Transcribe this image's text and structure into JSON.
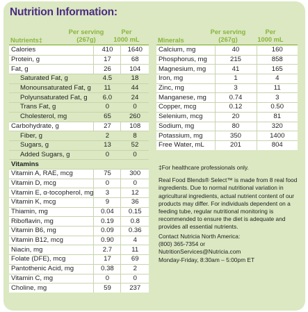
{
  "title": "Nutrition Information:",
  "headers": {
    "nutrients": "Nutrients‡",
    "per_serving": "Per serving",
    "per_serving_sub": "(267g)",
    "per_volume": "Per",
    "per_volume_sub": "1000 mL",
    "minerals": "Minerals"
  },
  "nutrients": [
    {
      "name": "Calories",
      "serving": "410",
      "volume": "1640",
      "white": true
    },
    {
      "name": "Protein, g",
      "serving": "17",
      "volume": "68",
      "white": true
    },
    {
      "name": "Fat, g",
      "serving": "26",
      "volume": "104",
      "white": true
    },
    {
      "name": "Saturated Fat, g",
      "serving": "4.5",
      "volume": "18",
      "white": false,
      "sub": true
    },
    {
      "name": "Monounsaturated Fat, g",
      "serving": "11",
      "volume": "44",
      "white": false,
      "sub": true
    },
    {
      "name": "Polyunsaturated Fat, g",
      "serving": "6.0",
      "volume": "24",
      "white": false,
      "sub": true
    },
    {
      "name": "Trans Fat, g",
      "serving": "0",
      "volume": "0",
      "white": false,
      "sub": true
    },
    {
      "name": "Cholesterol, mg",
      "serving": "65",
      "volume": "260",
      "white": false,
      "sub": true
    },
    {
      "name": "Carbohydrate, g",
      "serving": "27",
      "volume": "108",
      "white": true
    },
    {
      "name": "Fiber, g",
      "serving": "2",
      "volume": "8",
      "white": false,
      "sub": true
    },
    {
      "name": "Sugars, g",
      "serving": "13",
      "volume": "52",
      "white": false,
      "sub": true
    },
    {
      "name": "Added Sugars, g",
      "serving": "0",
      "volume": "0",
      "white": false,
      "sub": true
    }
  ],
  "vitamins_heading": "Vitamins",
  "vitamins": [
    {
      "name": "Vitamin A, RAE, mcg",
      "serving": "75",
      "volume": "300"
    },
    {
      "name": "Vitamin D, mcg",
      "serving": "0",
      "volume": "0"
    },
    {
      "name": "Vitamin E, α-tocopherol, mg",
      "serving": "3",
      "volume": "12"
    },
    {
      "name": "Vitamin K, mcg",
      "serving": "9",
      "volume": "36"
    },
    {
      "name": "Thiamin, mg",
      "serving": "0.04",
      "volume": "0.15"
    },
    {
      "name": "Riboflavin, mg",
      "serving": "0.19",
      "volume": "0.8"
    },
    {
      "name": "Vitamin B6, mg",
      "serving": "0.09",
      "volume": "0.36"
    },
    {
      "name": "Vitamin B12, mcg",
      "serving": "0.90",
      "volume": "4"
    },
    {
      "name": "Niacin, mg",
      "serving": "2.7",
      "volume": "11"
    },
    {
      "name": "Folate (DFE), mcg",
      "serving": "17",
      "volume": "69"
    },
    {
      "name": "Pantothenic Acid, mg",
      "serving": "0.38",
      "volume": "2"
    },
    {
      "name": "Vitamin C, mg",
      "serving": "0",
      "volume": "0"
    },
    {
      "name": "Choline, mg",
      "serving": "59",
      "volume": "237"
    }
  ],
  "minerals": [
    {
      "name": "Calcium, mg",
      "serving": "40",
      "volume": "160"
    },
    {
      "name": "Phosphorus, mg",
      "serving": "215",
      "volume": "858"
    },
    {
      "name": "Magnesium, mg",
      "serving": "41",
      "volume": "165"
    },
    {
      "name": "Iron, mg",
      "serving": "1",
      "volume": "4"
    },
    {
      "name": "Zinc, mg",
      "serving": "3",
      "volume": "11"
    },
    {
      "name": "Manganese, mg",
      "serving": "0.74",
      "volume": "3"
    },
    {
      "name": "Copper, mcg",
      "serving": "0.12",
      "volume": "0.50"
    },
    {
      "name": "Selenium, mcg",
      "serving": "20",
      "volume": "81"
    },
    {
      "name": "Sodium, mg",
      "serving": "80",
      "volume": "320"
    },
    {
      "name": "Potassium, mg",
      "serving": "350",
      "volume": "1400"
    },
    {
      "name": "Free Water, mL",
      "serving": "201",
      "volume": "804"
    }
  ],
  "footnote": "‡For healthcare professionals only.",
  "description": "Real Food Blends® Select™ is made from 8 real food ingredients. Due to normal nutritional variation in agricultural ingredients, actual nutrient content of our products may differ. For individuals dependent on a feeding tube, regular nutritional monitoring is recommended to ensure the diet is adequate and provides all essential nutrients.",
  "contact": {
    "heading": "Contact Nutricia North America:",
    "phone": "(800) 365-7354 or",
    "email": "NutritionServices@Nutricia.com",
    "hours": "Monday-Friday, 8:30am – 5:00pm ET"
  },
  "colors": {
    "title": "#4b2c82",
    "header_green": "#8ab43c",
    "panel_bg": "#dbe8c2",
    "row_white": "#ffffff"
  }
}
